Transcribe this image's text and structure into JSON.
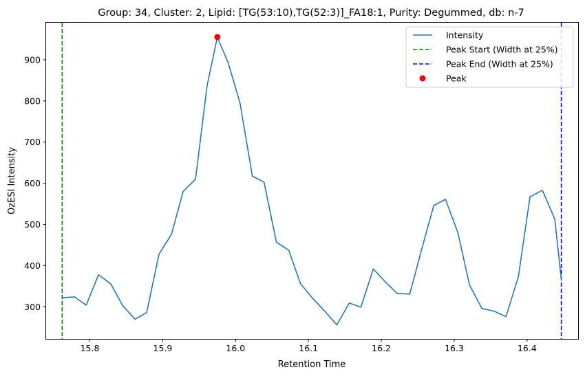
{
  "chart_data": {
    "type": "line",
    "title": "Group: 34, Cluster: 2, Lipid: [TG(53:10),TG(52:3)]_FA18:1, Purity: Degummed, db: n-7",
    "xlabel": "Retention Time",
    "ylabel": "OzESI Intensity",
    "xlim": [
      15.74,
      16.47
    ],
    "ylim": [
      222,
      990
    ],
    "x_ticks": [
      "15.8",
      "15.9",
      "16.0",
      "16.1",
      "16.2",
      "16.3",
      "16.4"
    ],
    "y_ticks": [
      "300",
      "400",
      "500",
      "600",
      "700",
      "800",
      "900"
    ],
    "grid": false,
    "legend_position": "top-right",
    "series": [
      {
        "name": "Intensity",
        "color": "#1f77b4",
        "x": [
          15.762,
          15.779,
          15.795,
          15.812,
          15.829,
          15.845,
          15.862,
          15.878,
          15.895,
          15.912,
          15.928,
          15.945,
          15.961,
          15.975,
          15.99,
          16.006,
          16.023,
          16.039,
          16.056,
          16.073,
          16.089,
          16.106,
          16.122,
          16.139,
          16.156,
          16.172,
          16.189,
          16.205,
          16.222,
          16.239,
          16.255,
          16.272,
          16.288,
          16.305,
          16.321,
          16.338,
          16.355,
          16.371,
          16.388,
          16.404,
          16.421,
          16.438,
          16.447
        ],
        "y": [
          322,
          324,
          304,
          378,
          355,
          303,
          270,
          286,
          428,
          476,
          580,
          610,
          838,
          955,
          892,
          795,
          617,
          603,
          457,
          437,
          356,
          320,
          290,
          256,
          309,
          299,
          392,
          361,
          332,
          331,
          437,
          546,
          561,
          480,
          353,
          296,
          289,
          276,
          373,
          567,
          583,
          513,
          366
        ]
      },
      {
        "name": "Peak Start (Width at 25%)",
        "kind": "vline",
        "x": 15.762,
        "color": "#008000",
        "dash": "dashed"
      },
      {
        "name": "Peak End (Width at 25%)",
        "kind": "vline",
        "x": 16.447,
        "color": "#0000ff",
        "dash": "dashed"
      },
      {
        "name": "Peak",
        "kind": "point",
        "x": 15.975,
        "y": 955,
        "color": "#ff0000"
      }
    ]
  }
}
